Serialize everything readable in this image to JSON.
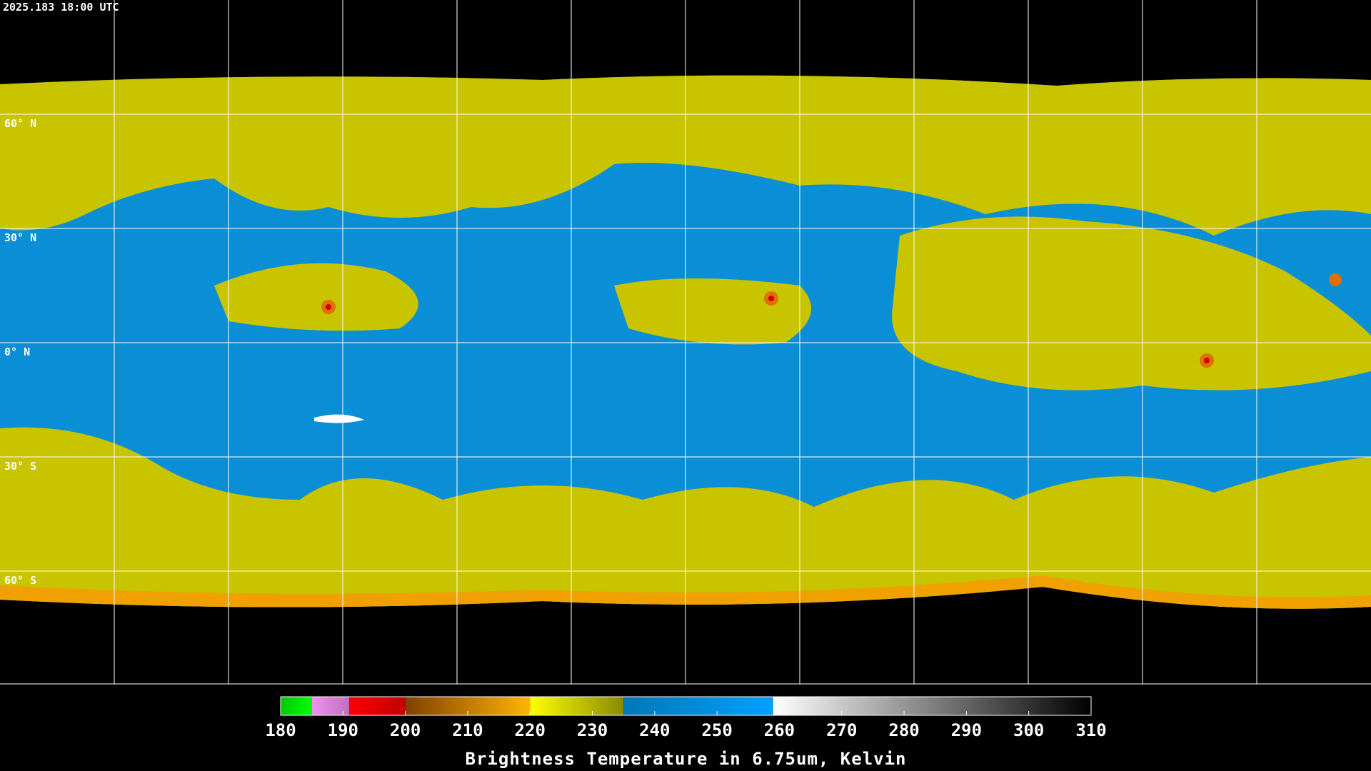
{
  "map": {
    "timestamp": "2025.183 18:00 UTC",
    "lat_labels": [
      "60° N",
      "30° N",
      "0° N",
      "30° S",
      "60° S"
    ]
  },
  "colorbar": {
    "range": [
      180,
      310
    ],
    "ticks": [
      180,
      190,
      200,
      210,
      220,
      230,
      240,
      250,
      260,
      270,
      280,
      290,
      300,
      310
    ],
    "segments": [
      {
        "from": 180,
        "to": 185,
        "colors": [
          "#00c800",
          "#00ff00"
        ]
      },
      {
        "from": 185,
        "to": 191,
        "colors": [
          "#f090f0",
          "#c070c0"
        ]
      },
      {
        "from": 191,
        "to": 200,
        "colors": [
          "#ff0000",
          "#c00000"
        ]
      },
      {
        "from": 200,
        "to": 220,
        "colors": [
          "#804000",
          "#ffb400"
        ]
      },
      {
        "from": 220,
        "to": 235,
        "colors": [
          "#ffff00",
          "#8a8a00"
        ]
      },
      {
        "from": 235,
        "to": 259,
        "colors": [
          "#0078b8",
          "#00a0ff"
        ]
      },
      {
        "from": 259,
        "to": 310,
        "colors": [
          "#ffffff",
          "#000000"
        ]
      }
    ],
    "title": "Brightness Temperature in 6.75um, Kelvin"
  }
}
